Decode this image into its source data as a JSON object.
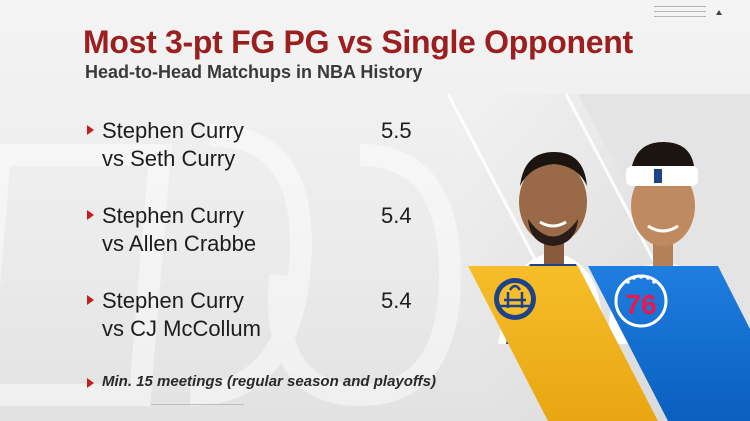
{
  "header": {
    "title": "Most 3-pt FG PG vs Single Opponent",
    "subtitle": "Head-to-Head Matchups in NBA History"
  },
  "entries": [
    {
      "player": "Stephen Curry",
      "opponent": "vs Seth Curry",
      "value": "5.5"
    },
    {
      "player": "Stephen Curry",
      "opponent": "vs Allen Crabbe",
      "value": "5.4"
    },
    {
      "player": "Stephen Curry",
      "opponent": "vs CJ McCollum",
      "value": "5.4"
    }
  ],
  "footnote": "Min. 15 meetings (regular season and playoffs)",
  "logos": {
    "warriors_icon": "golden-state-warriors-logo",
    "sixers_icon": "philadelphia-76ers-logo",
    "sixers_text": "76"
  },
  "colors": {
    "title_red": "#9c1f20",
    "bullet_red": "#c41e1e",
    "warriors_gold": "#f3b21c",
    "warriors_blue": "#1d428a",
    "sixers_blue": "#0a66c8",
    "sixers_red": "#ed174c"
  }
}
